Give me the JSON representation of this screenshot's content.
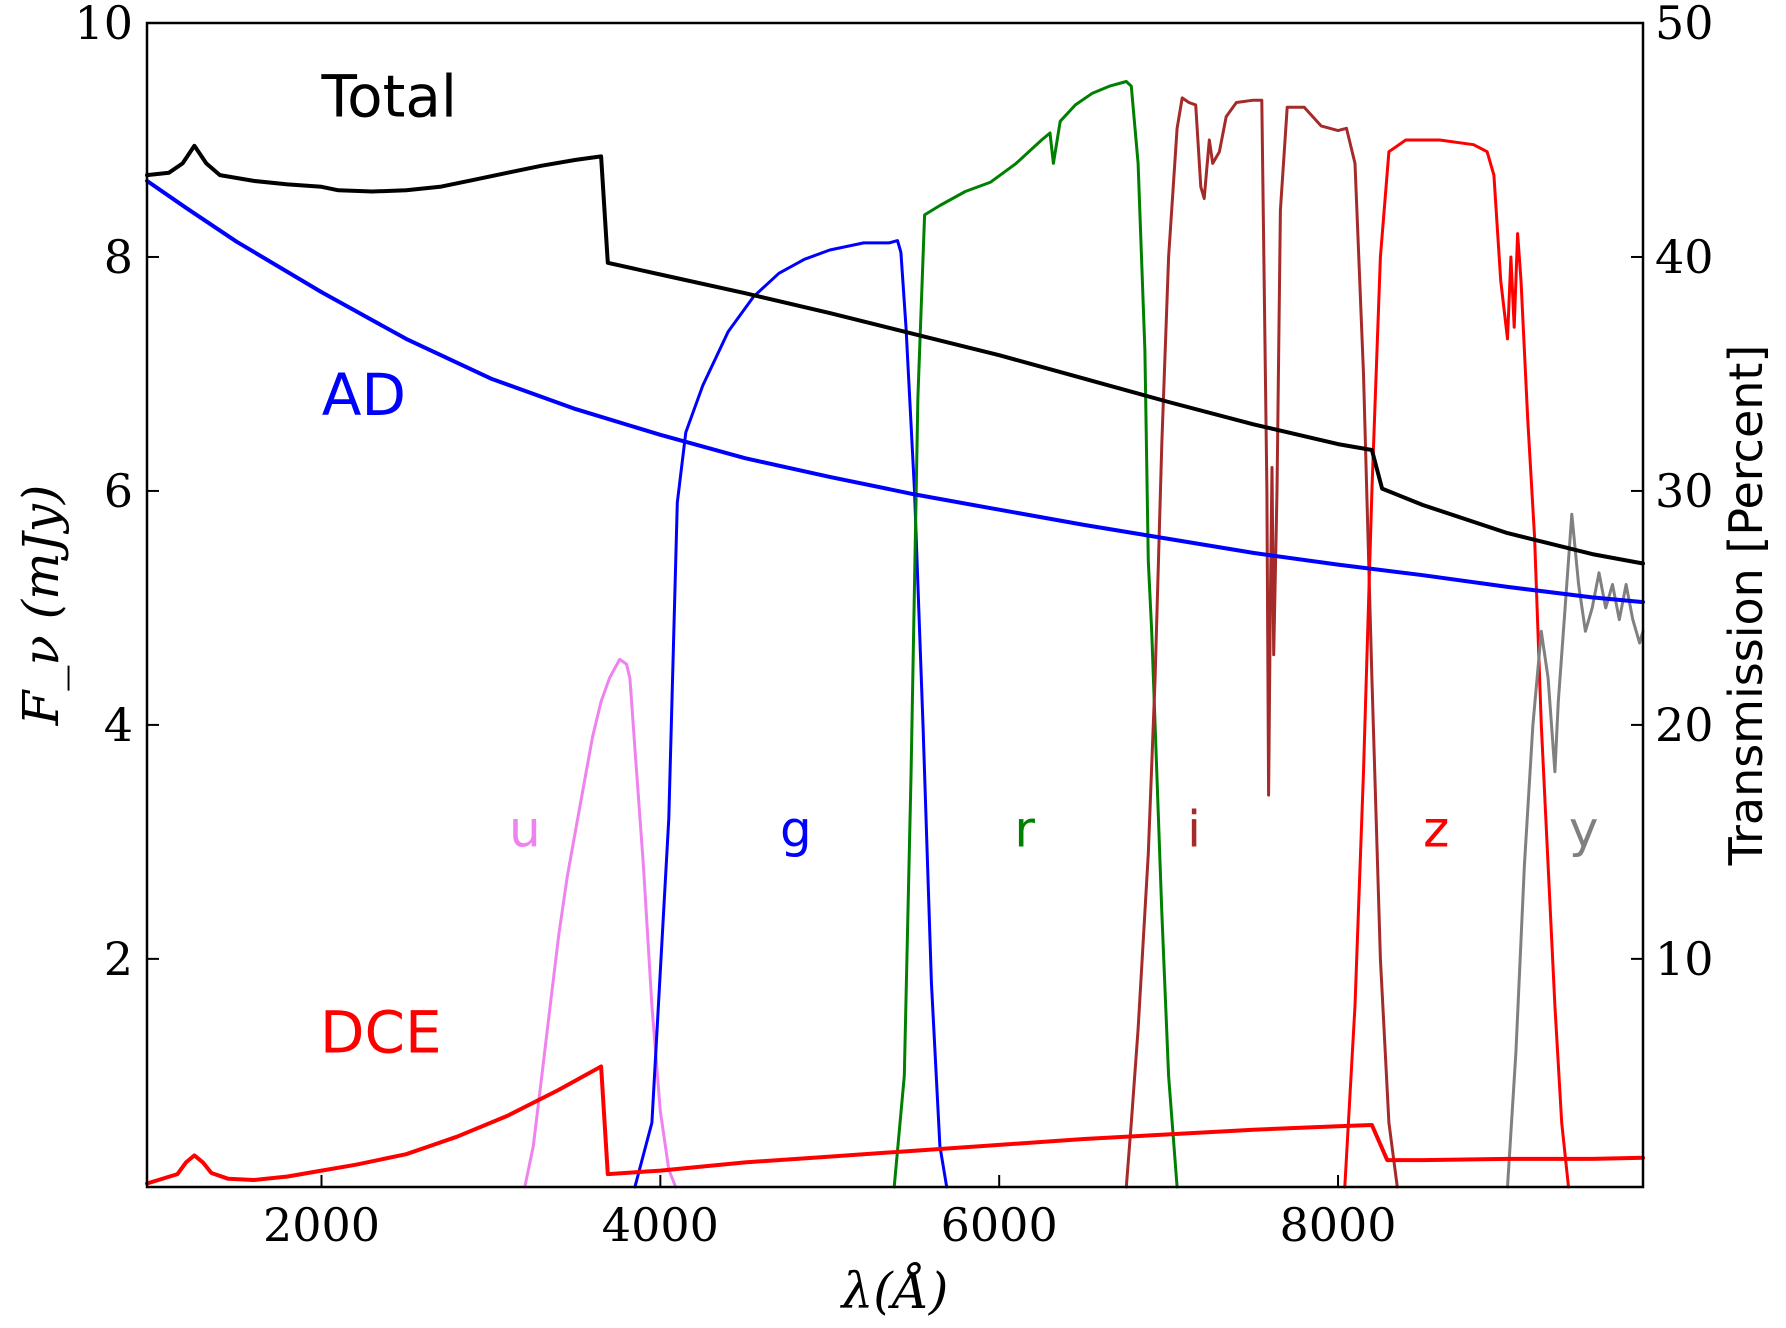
{
  "chart_data": {
    "type": "line",
    "title": "",
    "xlabel": "λ(Å)",
    "ylabel": "F_ν (mJy)",
    "ylabel_right": "Transmission [Percent]",
    "xlim": [
      970,
      9800
    ],
    "ylim": [
      0.05,
      10
    ],
    "ylim_right": [
      0.25,
      50
    ],
    "x_ticks": [
      2000,
      4000,
      6000,
      8000
    ],
    "x_tick_labels": [
      "2000",
      "4000",
      "6000",
      "8000"
    ],
    "y_ticks": [
      2,
      4,
      6,
      8,
      10
    ],
    "y_tick_labels": [
      "2",
      "4",
      "6",
      "8",
      "10"
    ],
    "y_ticks_right": [
      10,
      20,
      30,
      40,
      50
    ],
    "y_tick_labels_right": [
      "10",
      "20",
      "30",
      "40",
      "50"
    ],
    "grid": false,
    "series": [
      {
        "name": "Total",
        "axis": "left",
        "color": "#000000",
        "width": 4,
        "points": [
          [
            970,
            8.7
          ],
          [
            1100,
            8.72
          ],
          [
            1180,
            8.8
          ],
          [
            1250,
            8.95
          ],
          [
            1320,
            8.8
          ],
          [
            1400,
            8.7
          ],
          [
            1600,
            8.65
          ],
          [
            1800,
            8.62
          ],
          [
            2000,
            8.6
          ],
          [
            2100,
            8.57
          ],
          [
            2300,
            8.56
          ],
          [
            2500,
            8.57
          ],
          [
            2700,
            8.6
          ],
          [
            2900,
            8.66
          ],
          [
            3100,
            8.72
          ],
          [
            3300,
            8.78
          ],
          [
            3500,
            8.83
          ],
          [
            3650,
            8.86
          ],
          [
            3690,
            7.95
          ],
          [
            4000,
            7.85
          ],
          [
            4500,
            7.69
          ],
          [
            5000,
            7.52
          ],
          [
            5500,
            7.34
          ],
          [
            6000,
            7.16
          ],
          [
            6500,
            6.96
          ],
          [
            7000,
            6.76
          ],
          [
            7500,
            6.57
          ],
          [
            8000,
            6.4
          ],
          [
            8200,
            6.35
          ],
          [
            8260,
            6.02
          ],
          [
            8500,
            5.88
          ],
          [
            9000,
            5.64
          ],
          [
            9500,
            5.46
          ],
          [
            9800,
            5.38
          ]
        ]
      },
      {
        "name": "AD",
        "axis": "left",
        "color": "#0000ff",
        "width": 4,
        "points": [
          [
            970,
            8.65
          ],
          [
            1200,
            8.42
          ],
          [
            1500,
            8.13
          ],
          [
            2000,
            7.7
          ],
          [
            2500,
            7.3
          ],
          [
            3000,
            6.96
          ],
          [
            3500,
            6.7
          ],
          [
            4000,
            6.48
          ],
          [
            4500,
            6.28
          ],
          [
            5000,
            6.12
          ],
          [
            5500,
            5.97
          ],
          [
            6000,
            5.84
          ],
          [
            6500,
            5.71
          ],
          [
            7000,
            5.59
          ],
          [
            7500,
            5.47
          ],
          [
            8000,
            5.37
          ],
          [
            8500,
            5.28
          ],
          [
            9000,
            5.18
          ],
          [
            9500,
            5.09
          ],
          [
            9800,
            5.05
          ]
        ]
      },
      {
        "name": "DCE",
        "axis": "left",
        "color": "#ff0000",
        "width": 4,
        "points": [
          [
            970,
            0.08
          ],
          [
            1150,
            0.16
          ],
          [
            1200,
            0.26
          ],
          [
            1250,
            0.32
          ],
          [
            1300,
            0.26
          ],
          [
            1350,
            0.17
          ],
          [
            1450,
            0.12
          ],
          [
            1600,
            0.11
          ],
          [
            1800,
            0.14
          ],
          [
            2000,
            0.19
          ],
          [
            2200,
            0.24
          ],
          [
            2500,
            0.33
          ],
          [
            2800,
            0.48
          ],
          [
            3100,
            0.66
          ],
          [
            3400,
            0.88
          ],
          [
            3650,
            1.08
          ],
          [
            3690,
            0.16
          ],
          [
            4000,
            0.19
          ],
          [
            4500,
            0.26
          ],
          [
            5000,
            0.31
          ],
          [
            5500,
            0.36
          ],
          [
            6000,
            0.41
          ],
          [
            6500,
            0.46
          ],
          [
            7000,
            0.5
          ],
          [
            7500,
            0.54
          ],
          [
            8000,
            0.57
          ],
          [
            8200,
            0.58
          ],
          [
            8290,
            0.28
          ],
          [
            8500,
            0.28
          ],
          [
            9000,
            0.29
          ],
          [
            9500,
            0.29
          ],
          [
            9800,
            0.3
          ]
        ]
      },
      {
        "name": "u",
        "axis": "right",
        "color": "#ee82ee",
        "width": 3,
        "points": [
          [
            3200,
            0.25
          ],
          [
            3250,
            2
          ],
          [
            3300,
            5
          ],
          [
            3350,
            8
          ],
          [
            3400,
            11
          ],
          [
            3450,
            13.5
          ],
          [
            3500,
            15.5
          ],
          [
            3550,
            17.5
          ],
          [
            3600,
            19.5
          ],
          [
            3650,
            21
          ],
          [
            3700,
            22
          ],
          [
            3760,
            22.8
          ],
          [
            3800,
            22.6
          ],
          [
            3820,
            22
          ],
          [
            3850,
            19
          ],
          [
            3900,
            14
          ],
          [
            3950,
            8
          ],
          [
            4000,
            3.5
          ],
          [
            4050,
            1
          ],
          [
            4090,
            0.25
          ]
        ]
      },
      {
        "name": "g",
        "axis": "right",
        "color": "#0000ff",
        "width": 3,
        "points": [
          [
            3850,
            0.25
          ],
          [
            3950,
            3
          ],
          [
            4050,
            16
          ],
          [
            4100,
            29.5
          ],
          [
            4150,
            32.5
          ],
          [
            4250,
            34.5
          ],
          [
            4400,
            36.8
          ],
          [
            4550,
            38.3
          ],
          [
            4700,
            39.3
          ],
          [
            4850,
            39.9
          ],
          [
            5000,
            40.3
          ],
          [
            5200,
            40.6
          ],
          [
            5350,
            40.6
          ],
          [
            5400,
            40.7
          ],
          [
            5420,
            40.2
          ],
          [
            5450,
            37
          ],
          [
            5500,
            30
          ],
          [
            5550,
            20
          ],
          [
            5600,
            9
          ],
          [
            5650,
            2
          ],
          [
            5690,
            0.25
          ]
        ]
      },
      {
        "name": "r",
        "axis": "right",
        "color": "#008000",
        "width": 3,
        "points": [
          [
            5380,
            0.25
          ],
          [
            5440,
            5
          ],
          [
            5480,
            18
          ],
          [
            5520,
            34
          ],
          [
            5560,
            41.8
          ],
          [
            5650,
            42.2
          ],
          [
            5800,
            42.8
          ],
          [
            5950,
            43.2
          ],
          [
            6100,
            44
          ],
          [
            6250,
            45
          ],
          [
            6300,
            45.3
          ],
          [
            6320,
            44
          ],
          [
            6360,
            45.8
          ],
          [
            6450,
            46.5
          ],
          [
            6550,
            47
          ],
          [
            6650,
            47.3
          ],
          [
            6750,
            47.5
          ],
          [
            6780,
            47.3
          ],
          [
            6820,
            44
          ],
          [
            6860,
            36
          ],
          [
            6880,
            27
          ],
          [
            6900,
            24
          ],
          [
            6920,
            20
          ],
          [
            6960,
            12
          ],
          [
            7000,
            5
          ],
          [
            7050,
            0.25
          ]
        ]
      },
      {
        "name": "i",
        "axis": "right",
        "color": "#a52a2a",
        "width": 3,
        "points": [
          [
            6750,
            0.25
          ],
          [
            6780,
            3
          ],
          [
            6820,
            7
          ],
          [
            6860,
            12
          ],
          [
            6880,
            14.5
          ],
          [
            6920,
            22
          ],
          [
            6960,
            32
          ],
          [
            7000,
            40
          ],
          [
            7050,
            45.5
          ],
          [
            7080,
            46.8
          ],
          [
            7120,
            46.6
          ],
          [
            7160,
            46.5
          ],
          [
            7190,
            43
          ],
          [
            7210,
            42.5
          ],
          [
            7240,
            45
          ],
          [
            7260,
            44
          ],
          [
            7300,
            44.5
          ],
          [
            7340,
            46
          ],
          [
            7400,
            46.6
          ],
          [
            7500,
            46.7
          ],
          [
            7550,
            46.7
          ],
          [
            7580,
            30
          ],
          [
            7590,
            17
          ],
          [
            7600,
            25
          ],
          [
            7610,
            31
          ],
          [
            7620,
            23
          ],
          [
            7640,
            30
          ],
          [
            7660,
            42
          ],
          [
            7700,
            46.4
          ],
          [
            7800,
            46.4
          ],
          [
            7900,
            45.6
          ],
          [
            8000,
            45.4
          ],
          [
            8050,
            45.5
          ],
          [
            8100,
            44
          ],
          [
            8150,
            35
          ],
          [
            8200,
            22
          ],
          [
            8250,
            10
          ],
          [
            8300,
            3
          ],
          [
            8350,
            0.25
          ]
        ]
      },
      {
        "name": "z",
        "axis": "right",
        "color": "#ff0000",
        "width": 3,
        "points": [
          [
            8040,
            0.25
          ],
          [
            8100,
            8
          ],
          [
            8150,
            18
          ],
          [
            8200,
            30
          ],
          [
            8250,
            40
          ],
          [
            8300,
            44.5
          ],
          [
            8400,
            45
          ],
          [
            8600,
            45
          ],
          [
            8800,
            44.8
          ],
          [
            8880,
            44.5
          ],
          [
            8920,
            43.5
          ],
          [
            8960,
            39
          ],
          [
            9000,
            36.5
          ],
          [
            9020,
            40
          ],
          [
            9040,
            37
          ],
          [
            9060,
            41
          ],
          [
            9080,
            39
          ],
          [
            9120,
            33
          ],
          [
            9160,
            28
          ],
          [
            9200,
            20
          ],
          [
            9240,
            14
          ],
          [
            9280,
            8
          ],
          [
            9320,
            3
          ],
          [
            9360,
            0.25
          ]
        ]
      },
      {
        "name": "y",
        "axis": "right",
        "color": "#808080",
        "width": 3,
        "points": [
          [
            9000,
            0.25
          ],
          [
            9050,
            6
          ],
          [
            9100,
            14
          ],
          [
            9150,
            20
          ],
          [
            9200,
            24
          ],
          [
            9240,
            22
          ],
          [
            9280,
            18
          ],
          [
            9300,
            21
          ],
          [
            9340,
            25
          ],
          [
            9380,
            29
          ],
          [
            9420,
            26
          ],
          [
            9460,
            24
          ],
          [
            9500,
            25
          ],
          [
            9540,
            26.5
          ],
          [
            9580,
            25
          ],
          [
            9620,
            26
          ],
          [
            9660,
            24.5
          ],
          [
            9700,
            26
          ],
          [
            9740,
            24.5
          ],
          [
            9780,
            23.5
          ],
          [
            9800,
            24
          ]
        ]
      }
    ],
    "annotations": [
      {
        "text": "Total",
        "color": "#000000",
        "x": 2400,
        "y": 9.2,
        "axis": "left"
      },
      {
        "text": "AD",
        "color": "#0000ff",
        "x": 2250,
        "y": 6.65,
        "axis": "left"
      },
      {
        "text": "DCE",
        "color": "#ff0000",
        "x": 2350,
        "y": 1.2,
        "axis": "left"
      }
    ],
    "band_labels": [
      {
        "text": "u",
        "color": "#ee82ee",
        "x": 3200,
        "y": 14.8
      },
      {
        "text": "g",
        "color": "#0000ff",
        "x": 4800,
        "y": 14.8
      },
      {
        "text": "r",
        "color": "#008000",
        "x": 6150,
        "y": 14.8
      },
      {
        "text": "i",
        "color": "#a52a2a",
        "x": 7150,
        "y": 14.8
      },
      {
        "text": "z",
        "color": "#ff0000",
        "x": 8580,
        "y": 14.8
      },
      {
        "text": "y",
        "color": "#808080",
        "x": 9450,
        "y": 14.8
      }
    ]
  }
}
